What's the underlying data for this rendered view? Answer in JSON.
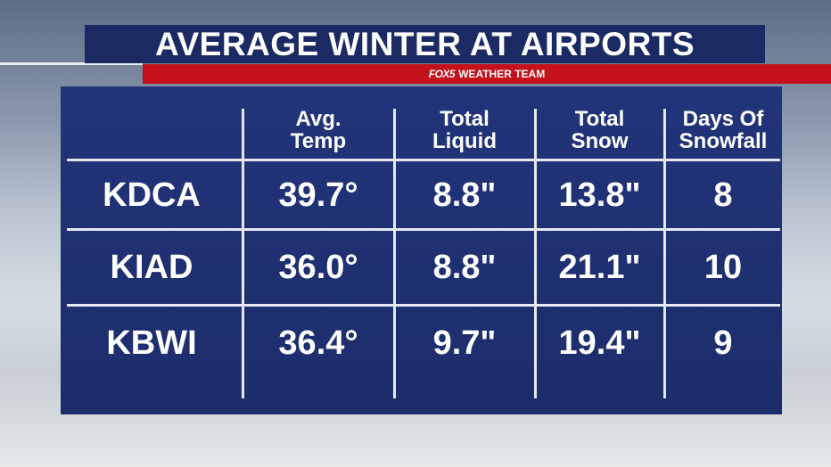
{
  "header": {
    "title": "AVERAGE WINTER AT AIRPORTS",
    "logo": "FOX5",
    "subtitle": "WEATHER TEAM"
  },
  "table": {
    "columns": [
      [
        "Avg.",
        "Temp"
      ],
      [
        "Total",
        "Liquid"
      ],
      [
        "Total",
        "Snow"
      ],
      [
        "Days Of",
        "Snowfall"
      ]
    ],
    "rows": [
      [
        "KDCA",
        "39.7°",
        "8.8\"",
        "13.8\"",
        "8"
      ],
      [
        "KIAD",
        "36.0°",
        "8.8\"",
        "21.1\"",
        "10"
      ],
      [
        "KBWI",
        "36.4°",
        "9.7\"",
        "19.4\"",
        "9"
      ]
    ]
  }
}
